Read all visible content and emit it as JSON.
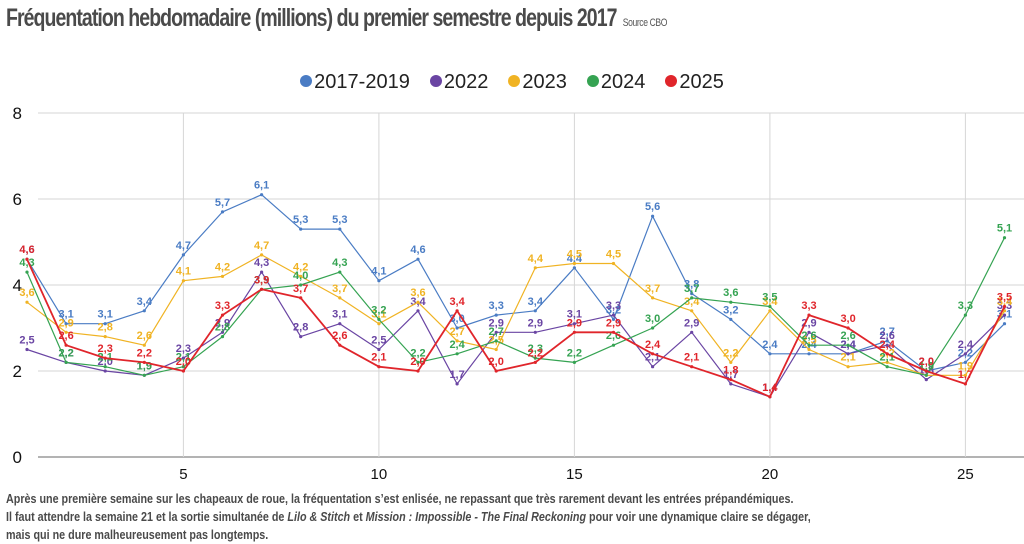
{
  "title": "Fréquentation hebdomadaire (millions) du premier semestre depuis 2017",
  "source": "Source CBO",
  "caption": {
    "line1": "Après une première semaine sur les chapeaux de roue, la fréquentation s’est enlisée, ne repassant que très rarement devant les entrées prépandémiques.",
    "line2_a": "Il faut attendre la semaine 21 et la sortie simultanée de ",
    "line2_film1": "Lilo & Stitch",
    "line2_b": " et ",
    "line2_film2": "Mission : Impossible - The Final Reckoning",
    "line2_c": " pour voir une dynamique claire se dégager,",
    "line3": "mais qui ne dure malheureusement pas longtemps."
  },
  "chart_data": {
    "type": "line",
    "title": "Fréquentation hebdomadaire (millions) du premier semestre depuis 2017",
    "xlabel": "",
    "ylabel": "",
    "x": [
      1,
      2,
      3,
      4,
      5,
      6,
      7,
      8,
      9,
      10,
      11,
      12,
      13,
      14,
      15,
      16,
      17,
      18,
      19,
      20,
      21,
      22,
      23,
      24,
      25,
      26
    ],
    "xticks": [
      5,
      10,
      15,
      20,
      25
    ],
    "yticks": [
      0,
      2,
      4,
      6,
      8
    ],
    "xlim": [
      1,
      26
    ],
    "ylim": [
      0,
      8
    ],
    "grid": true,
    "legend_position": "top-center",
    "decimal_separator": ",",
    "series": [
      {
        "name": "2017-2019",
        "color": "#4a7cc4",
        "values": [
          4.6,
          3.1,
          3.1,
          3.4,
          4.7,
          5.7,
          6.1,
          5.3,
          5.3,
          4.1,
          4.6,
          3.0,
          3.3,
          3.4,
          4.4,
          3.2,
          5.6,
          3.8,
          3.2,
          2.4,
          2.4,
          2.4,
          2.7,
          2.0,
          2.2,
          3.1
        ]
      },
      {
        "name": "2022",
        "color": "#6a45a3",
        "values": [
          2.5,
          2.2,
          2.0,
          1.9,
          2.3,
          2.9,
          4.3,
          2.8,
          3.1,
          2.5,
          3.4,
          1.7,
          2.9,
          2.9,
          3.1,
          3.3,
          2.1,
          2.9,
          1.7,
          1.4,
          2.9,
          2.4,
          2.6,
          1.8,
          2.4,
          3.3
        ]
      },
      {
        "name": "2023",
        "color": "#f0b323",
        "values": [
          3.6,
          2.9,
          2.8,
          2.6,
          4.1,
          4.2,
          4.7,
          4.2,
          3.7,
          3.1,
          3.6,
          2.7,
          2.5,
          4.4,
          4.5,
          4.5,
          3.7,
          3.4,
          2.2,
          3.4,
          2.5,
          2.1,
          2.2,
          1.9,
          1.9,
          3.4
        ]
      },
      {
        "name": "2024",
        "color": "#35a352",
        "values": [
          4.3,
          2.2,
          2.1,
          1.9,
          2.1,
          2.8,
          3.9,
          4.0,
          4.3,
          3.2,
          2.2,
          2.4,
          2.7,
          2.3,
          2.2,
          2.6,
          3.0,
          3.7,
          3.6,
          3.5,
          2.6,
          2.6,
          2.1,
          1.9,
          3.3,
          5.1
        ]
      },
      {
        "name": "2025",
        "color": "#e0252b",
        "values": [
          4.6,
          2.6,
          2.3,
          2.2,
          2.0,
          3.3,
          3.9,
          3.7,
          2.6,
          2.1,
          2.0,
          3.4,
          2.0,
          2.2,
          2.9,
          2.9,
          2.4,
          2.1,
          1.8,
          1.4,
          3.3,
          3.0,
          2.4,
          2.0,
          1.7,
          3.5
        ]
      }
    ]
  }
}
